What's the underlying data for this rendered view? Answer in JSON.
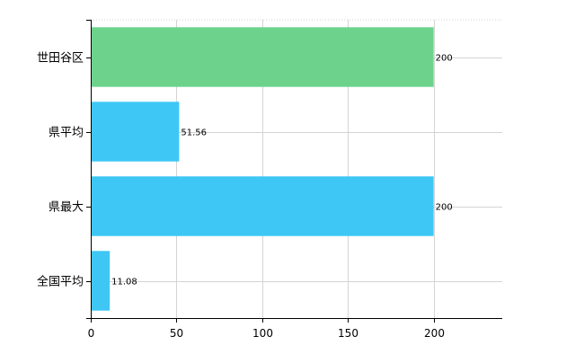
{
  "chart_data": {
    "type": "bar",
    "orientation": "horizontal",
    "categories": [
      "世田谷区",
      "県平均",
      "県最大",
      "全国平均"
    ],
    "values": [
      200,
      51.56,
      200,
      11.08
    ],
    "data_labels": [
      "200",
      "51.56",
      "200",
      "11.08"
    ],
    "bar_colors": [
      "#6dd38c",
      "#3ec7f5",
      "#3ec7f5",
      "#3ec7f5"
    ],
    "title": "",
    "xlabel": "",
    "ylabel": "",
    "xlim": [
      0,
      240
    ],
    "x_ticks": [
      0,
      50,
      100,
      150,
      200
    ],
    "x_tick_labels": [
      "0",
      "50",
      "100",
      "150",
      "200"
    ],
    "grid": true,
    "legend": "none"
  },
  "colors": {
    "grid": "#d4d4d4",
    "axis": "#000000",
    "text": "#000000"
  }
}
